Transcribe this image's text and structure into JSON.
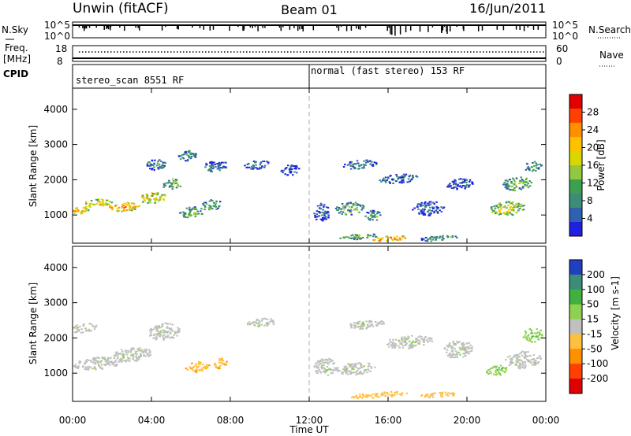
{
  "header": {
    "title": "Unwin (fitACF)",
    "beam": "Beam 01",
    "date": "16/Jun/2011"
  },
  "top_panels": {
    "nsky_label": "N.Sky",
    "nsky_ticks": [
      "10^5",
      "10^0"
    ],
    "nsearch_label": "N.Search",
    "nsearch_ticks": [
      "10^5",
      "10^0"
    ],
    "freq_label_1": "Freq.",
    "freq_label_2": "[MHz]",
    "freq_ticks": [
      "18",
      "8"
    ],
    "nave_label": "Nave",
    "nave_ticks": [
      "60",
      "0"
    ],
    "cpid_label": "CPID",
    "cpid_segments": [
      {
        "label": "stereo_scan 8551 RF",
        "start_hour": 0
      },
      {
        "label": "normal (fast stereo) 153 RF",
        "start_hour": 12
      }
    ]
  },
  "chart_data": [
    {
      "type": "heatmap",
      "name": "power",
      "ylabel": "Slant Range [km]",
      "yticks": [
        "4000",
        "3000",
        "2000",
        "1000"
      ],
      "ytick_values": [
        4000,
        3000,
        2000,
        1000
      ],
      "ylim": [
        200,
        4600
      ],
      "xlim": [
        0,
        24
      ],
      "colorbar_label": "Power [dB]",
      "colorbar_ticks": [
        "28",
        "24",
        "20",
        "16",
        "12",
        "8",
        "4"
      ],
      "colorbar_colors": [
        "#e00000",
        "#ff4000",
        "#ff9000",
        "#ffc000",
        "#d8d800",
        "#90c840",
        "#3ca050",
        "#3c8c78",
        "#3060b0",
        "#2020e0"
      ],
      "blobs": [
        {
          "x": 0.3,
          "y": 1150,
          "w": 1.0,
          "h": 200,
          "v": 22
        },
        {
          "x": 1.2,
          "y": 1350,
          "w": 1.5,
          "h": 250,
          "v": 20
        },
        {
          "x": 2.6,
          "y": 1250,
          "w": 1.6,
          "h": 250,
          "v": 24
        },
        {
          "x": 4.0,
          "y": 1500,
          "w": 1.4,
          "h": 300,
          "v": 20
        },
        {
          "x": 5.0,
          "y": 1900,
          "w": 1.0,
          "h": 300,
          "v": 14
        },
        {
          "x": 4.2,
          "y": 2450,
          "w": 1.0,
          "h": 300,
          "v": 10
        },
        {
          "x": 5.8,
          "y": 2700,
          "w": 0.9,
          "h": 300,
          "v": 12
        },
        {
          "x": 6.0,
          "y": 1100,
          "w": 1.2,
          "h": 300,
          "v": 13
        },
        {
          "x": 7.0,
          "y": 1300,
          "w": 1.1,
          "h": 300,
          "v": 12
        },
        {
          "x": 7.2,
          "y": 2400,
          "w": 1.3,
          "h": 300,
          "v": 8
        },
        {
          "x": 9.3,
          "y": 2450,
          "w": 1.3,
          "h": 250,
          "v": 7
        },
        {
          "x": 11.0,
          "y": 2300,
          "w": 1.0,
          "h": 300,
          "v": 6
        },
        {
          "x": 12.6,
          "y": 1100,
          "w": 0.9,
          "h": 500,
          "v": 6
        },
        {
          "x": 14.0,
          "y": 1200,
          "w": 1.5,
          "h": 350,
          "v": 13
        },
        {
          "x": 15.2,
          "y": 1000,
          "w": 1.0,
          "h": 300,
          "v": 10
        },
        {
          "x": 14.5,
          "y": 2450,
          "w": 1.8,
          "h": 250,
          "v": 9
        },
        {
          "x": 16.5,
          "y": 2050,
          "w": 2.0,
          "h": 250,
          "v": 7
        },
        {
          "x": 18.0,
          "y": 1200,
          "w": 1.6,
          "h": 400,
          "v": 6
        },
        {
          "x": 19.6,
          "y": 1900,
          "w": 1.4,
          "h": 300,
          "v": 6
        },
        {
          "x": 22.0,
          "y": 1200,
          "w": 1.8,
          "h": 400,
          "v": 18
        },
        {
          "x": 22.5,
          "y": 1900,
          "w": 1.5,
          "h": 400,
          "v": 14
        },
        {
          "x": 23.3,
          "y": 2400,
          "w": 0.9,
          "h": 300,
          "v": 10
        },
        {
          "x": 16.0,
          "y": 350,
          "w": 1.8,
          "h": 150,
          "v": 26
        },
        {
          "x": 14.5,
          "y": 400,
          "w": 2.0,
          "h": 150,
          "v": 14
        },
        {
          "x": 18.5,
          "y": 350,
          "w": 2.0,
          "h": 150,
          "v": 12
        }
      ]
    },
    {
      "type": "heatmap",
      "name": "velocity",
      "ylabel": "Slant Range [km]",
      "yticks": [
        "4000",
        "3000",
        "2000",
        "1000"
      ],
      "ytick_values": [
        4000,
        3000,
        2000,
        1000
      ],
      "ylim": [
        200,
        4600
      ],
      "xlim": [
        0,
        24
      ],
      "xlabel": "Time UT",
      "xticks": [
        "00:00",
        "04:00",
        "08:00",
        "12:00",
        "16:00",
        "20:00",
        "00:00"
      ],
      "xtick_values": [
        0,
        4,
        8,
        12,
        16,
        20,
        24
      ],
      "colorbar_label": "Velocity [m s-1]",
      "colorbar_ticks": [
        "200",
        "100",
        "50",
        "15",
        "-15",
        "-50",
        "-100",
        "-200"
      ],
      "colorbar_colors": [
        "#2040c0",
        "#3c8c78",
        "#40b040",
        "#90d050",
        "#c0c0c0",
        "#ffc040",
        "#ff9000",
        "#ff4000",
        "#e00000"
      ],
      "blobs": [
        {
          "x": 1.2,
          "y": 1300,
          "w": 2.5,
          "h": 350,
          "v": 0
        },
        {
          "x": 3.0,
          "y": 1550,
          "w": 2.0,
          "h": 400,
          "v": 0
        },
        {
          "x": 4.6,
          "y": 2200,
          "w": 1.6,
          "h": 500,
          "v": 0
        },
        {
          "x": 6.3,
          "y": 1200,
          "w": 1.2,
          "h": 300,
          "v": -60
        },
        {
          "x": 7.4,
          "y": 1300,
          "w": 0.8,
          "h": 300,
          "v": -60
        },
        {
          "x": 0.5,
          "y": 2300,
          "w": 1.5,
          "h": 250,
          "v": 0
        },
        {
          "x": 9.5,
          "y": 2450,
          "w": 1.5,
          "h": 250,
          "v": 0
        },
        {
          "x": 12.8,
          "y": 1200,
          "w": 1.2,
          "h": 500,
          "v": 0
        },
        {
          "x": 14.3,
          "y": 1150,
          "w": 2.0,
          "h": 350,
          "v": 0
        },
        {
          "x": 14.8,
          "y": 2400,
          "w": 2.0,
          "h": 250,
          "v": 0
        },
        {
          "x": 17.0,
          "y": 1900,
          "w": 2.5,
          "h": 350,
          "v": 0
        },
        {
          "x": 19.5,
          "y": 1700,
          "w": 1.5,
          "h": 500,
          "v": 0
        },
        {
          "x": 21.5,
          "y": 1100,
          "w": 1.2,
          "h": 300,
          "v": 30
        },
        {
          "x": 22.8,
          "y": 1400,
          "w": 1.8,
          "h": 500,
          "v": 0
        },
        {
          "x": 23.3,
          "y": 2100,
          "w": 1.0,
          "h": 400,
          "v": 30
        },
        {
          "x": 15.5,
          "y": 400,
          "w": 3.0,
          "h": 150,
          "v": -50
        },
        {
          "x": 18.5,
          "y": 400,
          "w": 2.0,
          "h": 150,
          "v": -30
        }
      ]
    }
  ]
}
